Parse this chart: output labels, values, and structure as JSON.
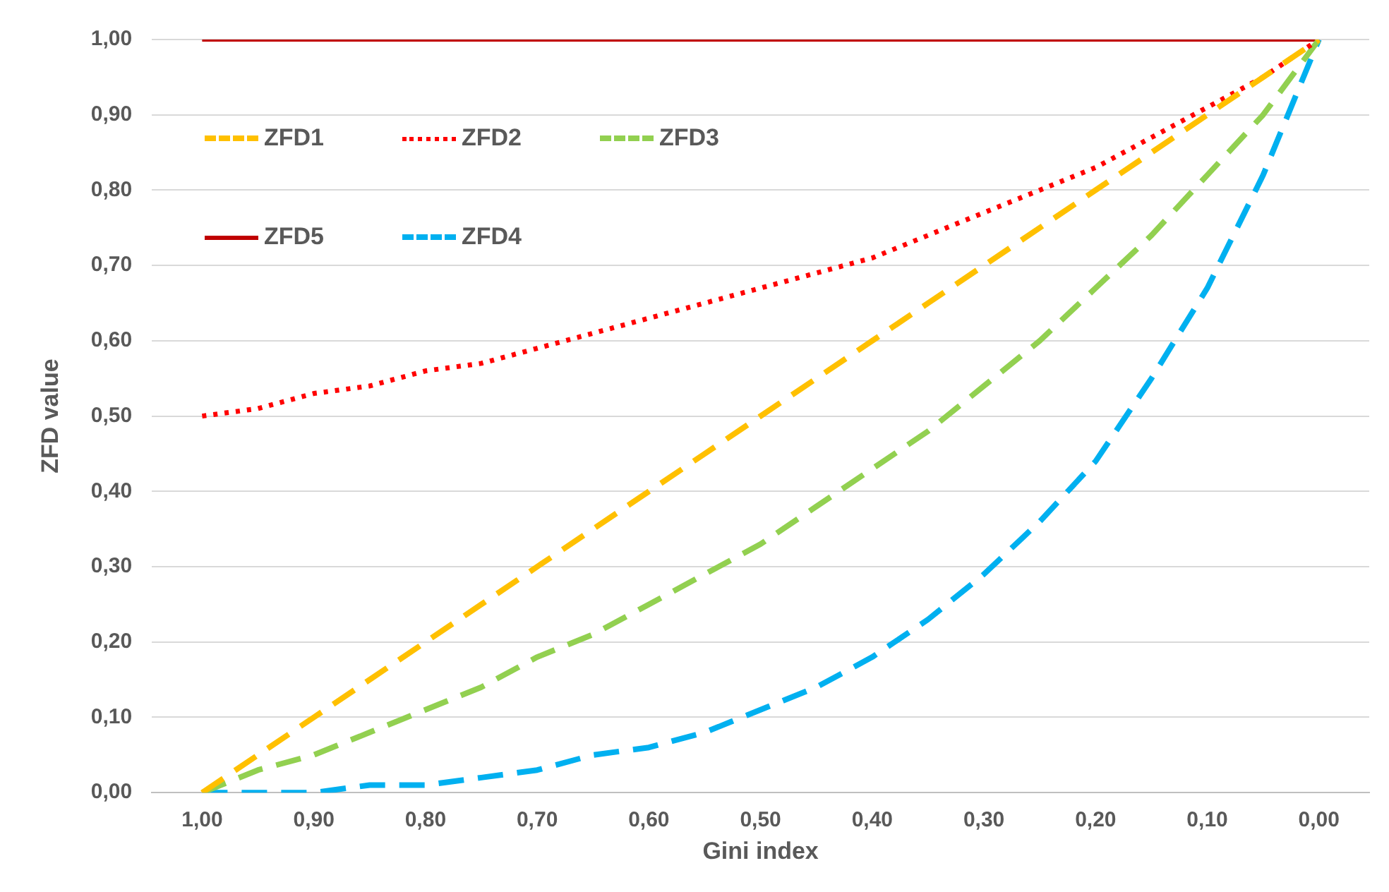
{
  "chart_data": {
    "type": "line",
    "xlabel": "Gini index",
    "ylabel": "ZFD value",
    "x": [
      1,
      0.95,
      0.9,
      0.85,
      0.8,
      0.75,
      0.7,
      0.65,
      0.6,
      0.55,
      0.5,
      0.45,
      0.4,
      0.35,
      0.3,
      0.25,
      0.2,
      0.15,
      0.1,
      0.05,
      0
    ],
    "series": [
      {
        "name": "ZFD1",
        "color": "#ffc000",
        "line_style": "dashed",
        "values": [
          0,
          0.05,
          0.1,
          0.15,
          0.2,
          0.25,
          0.3,
          0.35,
          0.4,
          0.45,
          0.5,
          0.55,
          0.6,
          0.65,
          0.7,
          0.75,
          0.8,
          0.85,
          0.9,
          0.95,
          1
        ]
      },
      {
        "name": "ZFD2",
        "color": "#ff0000",
        "line_style": "dotted",
        "values": [
          0.5,
          0.51,
          0.53,
          0.54,
          0.56,
          0.57,
          0.59,
          0.61,
          0.63,
          0.65,
          0.67,
          0.69,
          0.71,
          0.74,
          0.77,
          0.8,
          0.83,
          0.87,
          0.91,
          0.95,
          1
        ]
      },
      {
        "name": "ZFD3",
        "color": "#92d050",
        "line_style": "dashed",
        "values": [
          0,
          0.03,
          0.05,
          0.08,
          0.11,
          0.14,
          0.18,
          0.21,
          0.25,
          0.29,
          0.33,
          0.38,
          0.43,
          0.48,
          0.54,
          0.6,
          0.67,
          0.74,
          0.82,
          0.9,
          1
        ]
      },
      {
        "name": "ZFD5",
        "color": "#c00000",
        "line_style": "solid",
        "values": [
          1,
          1,
          1,
          1,
          1,
          1,
          1,
          1,
          1,
          1,
          1,
          1,
          1,
          1,
          1,
          1,
          1,
          1,
          1,
          1,
          1
        ]
      },
      {
        "name": "ZFD4",
        "color": "#00b0f0",
        "line_style": "dashed",
        "values": [
          0,
          0,
          0,
          0.01,
          0.01,
          0.02,
          0.03,
          0.05,
          0.06,
          0.08,
          0.11,
          0.14,
          0.18,
          0.23,
          0.29,
          0.36,
          0.44,
          0.55,
          0.67,
          0.82,
          1
        ]
      }
    ],
    "xlim": [
      1.045,
      -0.045
    ],
    "xticks": [
      {
        "value": 1,
        "label": "1,00"
      },
      {
        "value": 0.9,
        "label": "0,90"
      },
      {
        "value": 0.8,
        "label": "0,80"
      },
      {
        "value": 0.7,
        "label": "0,70"
      },
      {
        "value": 0.6,
        "label": "0,60"
      },
      {
        "value": 0.5,
        "label": "0,50"
      },
      {
        "value": 0.4,
        "label": "0,40"
      },
      {
        "value": 0.3,
        "label": "0,30"
      },
      {
        "value": 0.2,
        "label": "0,20"
      },
      {
        "value": 0.1,
        "label": "0,10"
      },
      {
        "value": 0,
        "label": "0,00"
      }
    ],
    "ylim": [
      0,
      1
    ],
    "yticks": [
      {
        "value": 0,
        "label": "0,00"
      },
      {
        "value": 0.1,
        "label": "0,10"
      },
      {
        "value": 0.2,
        "label": "0,20"
      },
      {
        "value": 0.3,
        "label": "0,30"
      },
      {
        "value": 0.4,
        "label": "0,40"
      },
      {
        "value": 0.5,
        "label": "0,50"
      },
      {
        "value": 0.6,
        "label": "0,60"
      },
      {
        "value": 0.7,
        "label": "0,70"
      },
      {
        "value": 0.8,
        "label": "0,80"
      },
      {
        "value": 0.9,
        "label": "0,90"
      },
      {
        "value": 1,
        "label": "1,00"
      }
    ],
    "grid": "y",
    "legend": "top left",
    "marker": "none"
  }
}
